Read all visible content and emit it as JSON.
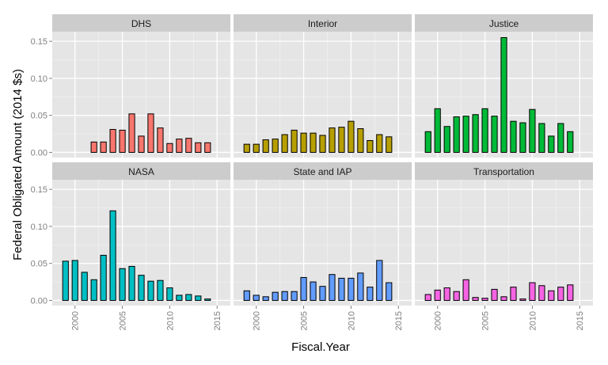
{
  "chart_data": {
    "type": "bar",
    "layout": "facet-grid 2x3",
    "xlabel": "Fiscal.Year",
    "ylabel": "Federal Obligated Amount (2014 $s)",
    "x": [
      1999,
      2000,
      2001,
      2002,
      2003,
      2004,
      2005,
      2006,
      2007,
      2008,
      2009,
      2010,
      2011,
      2012,
      2013,
      2014,
      2015
    ],
    "xlim": [
      1997.6,
      2016.4
    ],
    "x_ticks": [
      2000,
      2005,
      2010,
      2015
    ],
    "x_tick_labels": [
      "2000",
      "2005",
      "2010",
      "2015"
    ],
    "ylim": [
      -0.007,
      0.163
    ],
    "y_ticks": [
      0,
      0.05,
      0.1,
      0.15
    ],
    "y_tick_labels": [
      "0.00",
      "0.05",
      "0.10",
      "0.15"
    ],
    "grid": true,
    "legend": "none",
    "panel_background": "#e5e5e5",
    "strip_background": "#cccccc",
    "facets": [
      {
        "name": "DHS",
        "color": "#f8766d",
        "values": [
          0,
          0,
          0,
          0.014,
          0.014,
          0.031,
          0.03,
          0.052,
          0.022,
          0.052,
          0.033,
          0.012,
          0.018,
          0.019,
          0.013,
          0.013,
          null
        ]
      },
      {
        "name": "Interior",
        "color": "#b79f00",
        "values": [
          0.011,
          0.011,
          0.017,
          0.018,
          0.024,
          0.03,
          0.026,
          0.026,
          0.023,
          0.033,
          0.034,
          0.042,
          0.032,
          0.016,
          0.024,
          0.021,
          null
        ]
      },
      {
        "name": "Justice",
        "color": "#00ba38",
        "values": [
          0.028,
          0.059,
          0.035,
          0.048,
          0.049,
          0.051,
          0.059,
          0.049,
          0.155,
          0.042,
          0.04,
          0.058,
          0.039,
          0.022,
          0.039,
          0.028,
          null
        ]
      },
      {
        "name": "NASA",
        "color": "#00bfc4",
        "values": [
          0.053,
          0.054,
          0.038,
          0.028,
          0.061,
          0.121,
          0.043,
          0.046,
          0.034,
          0.026,
          0.027,
          0.017,
          0.007,
          0.008,
          0.006,
          0.002,
          null
        ]
      },
      {
        "name": "State and IAP",
        "color": "#619cff",
        "values": [
          0.013,
          0.007,
          0.005,
          0.011,
          0.012,
          0.012,
          0.031,
          0.025,
          0.019,
          0.035,
          0.03,
          0.03,
          0.037,
          0.018,
          0.054,
          0.024,
          null
        ]
      },
      {
        "name": "Transportation",
        "color": "#f564e3",
        "values": [
          0.008,
          0.014,
          0.017,
          0.012,
          0.028,
          0.004,
          0.003,
          0.015,
          0.005,
          0.018,
          0.002,
          0.024,
          0.02,
          0.013,
          0.018,
          0.021,
          null
        ]
      }
    ]
  }
}
